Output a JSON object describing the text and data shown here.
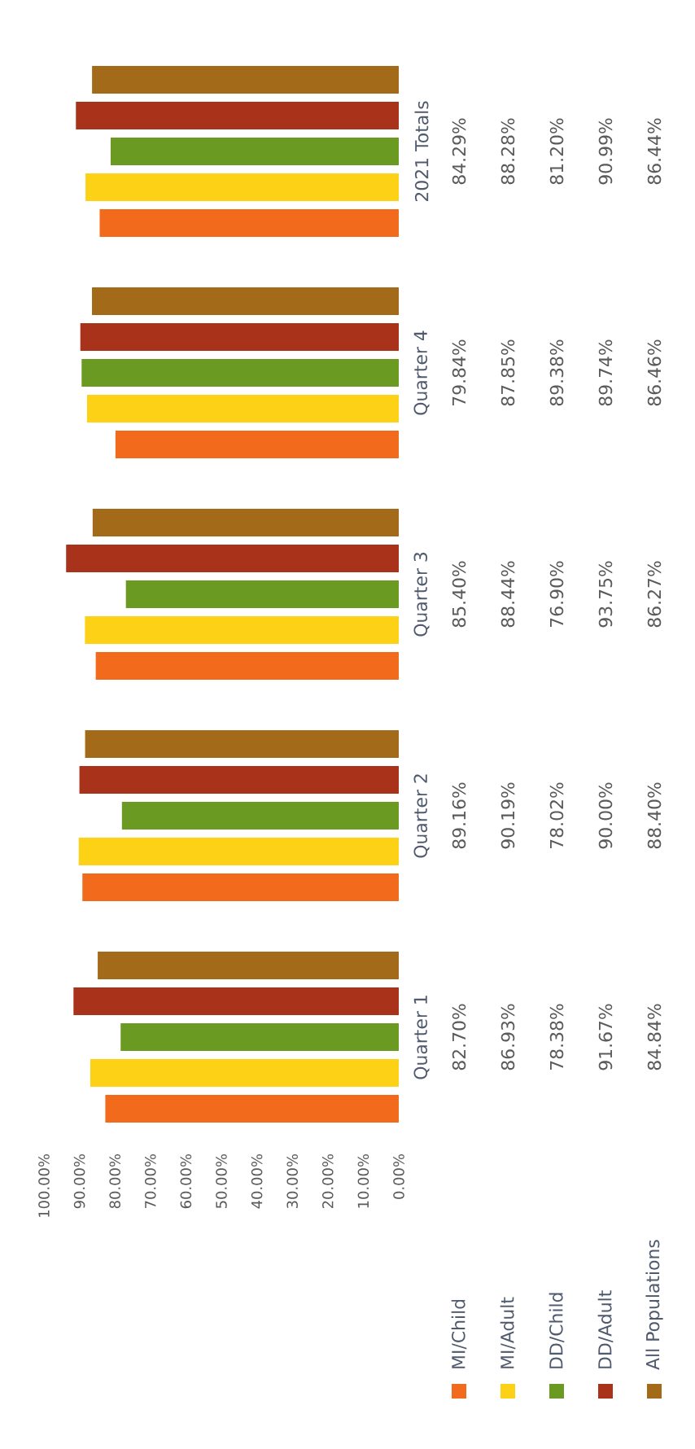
{
  "chart_data": {
    "type": "bar",
    "orientation": "horizontal",
    "categories": [
      "2021 Totals",
      "Quarter 4",
      "Quarter 3",
      "Quarter 2",
      "Quarter 1"
    ],
    "series": [
      {
        "name": "MI/Child",
        "color": "#f26b1d",
        "values": [
          84.29,
          79.84,
          85.4,
          89.16,
          82.7
        ],
        "value_labels": [
          "84.29%",
          "79.84%",
          "85.40%",
          "89.16%",
          "82.70%"
        ]
      },
      {
        "name": "MI/Adult",
        "color": "#fcd116",
        "values": [
          88.28,
          87.85,
          88.44,
          90.19,
          86.93
        ],
        "value_labels": [
          "88.28%",
          "87.85%",
          "88.44%",
          "90.19%",
          "86.93%"
        ]
      },
      {
        "name": "DD/Child",
        "color": "#6a9a22",
        "values": [
          81.2,
          89.38,
          76.9,
          78.02,
          78.38
        ],
        "value_labels": [
          "81.20%",
          "89.38%",
          "76.90%",
          "78.02%",
          "78.38%"
        ]
      },
      {
        "name": "DD/Adult",
        "color": "#a8321a",
        "values": [
          90.99,
          89.74,
          93.75,
          90.0,
          91.67
        ],
        "value_labels": [
          "90.99%",
          "89.74%",
          "93.75%",
          "90.00%",
          "91.67%"
        ]
      },
      {
        "name": "All Populations",
        "color": "#a36a1a",
        "values": [
          86.44,
          86.46,
          86.27,
          88.4,
          84.84
        ],
        "value_labels": [
          "86.44%",
          "86.46%",
          "86.27%",
          "88.40%",
          "84.84%"
        ]
      }
    ],
    "xlim": [
      100,
      0
    ],
    "xticks": [
      {
        "value": 0,
        "label": "0.00%"
      },
      {
        "value": 10,
        "label": "10.00%"
      },
      {
        "value": 20,
        "label": "20.00%"
      },
      {
        "value": 30,
        "label": "30.00%"
      },
      {
        "value": 40,
        "label": "40.00%"
      },
      {
        "value": 50,
        "label": "50.00%"
      },
      {
        "value": 60,
        "label": "60.00%"
      },
      {
        "value": 70,
        "label": "70.00%"
      },
      {
        "value": 80,
        "label": "80.00%"
      },
      {
        "value": 90,
        "label": "90.00%"
      },
      {
        "value": 100,
        "label": "100.00%"
      }
    ],
    "legend": "bottom right",
    "grid": false
  }
}
